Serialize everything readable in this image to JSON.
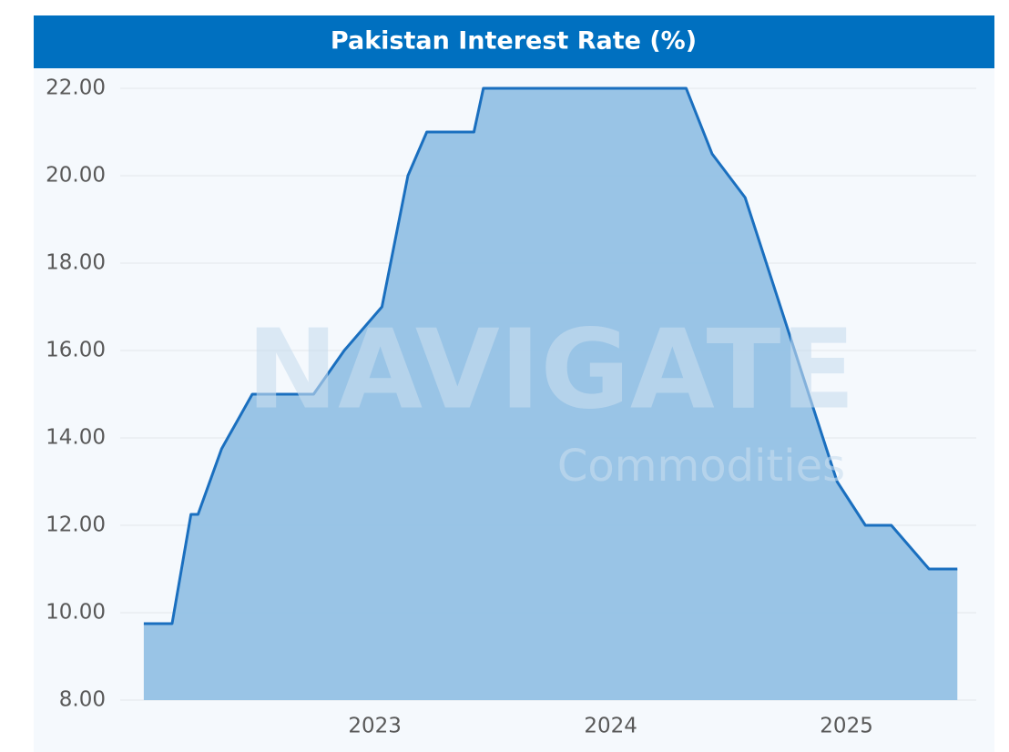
{
  "chart_data": {
    "type": "area",
    "title": "Pakistan Interest Rate (%)",
    "watermark": [
      "NAVIGATE",
      "Commodities"
    ],
    "x": [
      2022.02,
      2022.14,
      2022.22,
      2022.25,
      2022.35,
      2022.48,
      2022.74,
      2022.87,
      2023.03,
      2023.14,
      2023.22,
      2023.42,
      2023.46,
      2024.32,
      2024.43,
      2024.57,
      2024.96,
      2025.08,
      2025.19,
      2025.35,
      2025.47
    ],
    "series": [
      {
        "name": "Interest Rate",
        "color": "#1a6fbf",
        "fill": "#90bfe4",
        "values": [
          9.75,
          9.75,
          12.25,
          12.25,
          13.75,
          15,
          15,
          16,
          17,
          20,
          21,
          21,
          22,
          22,
          20.5,
          19.5,
          13,
          12,
          12,
          11,
          11
        ]
      }
    ],
    "xlim": [
      2021.92,
      2025.55
    ],
    "xticks": [
      2023,
      2024,
      2025
    ],
    "ylim": [
      8,
      22
    ],
    "yticks": [
      {
        "value": 8,
        "label": "8.00"
      },
      {
        "value": 10,
        "label": "10.00"
      },
      {
        "value": 12,
        "label": "12.00"
      },
      {
        "value": 14,
        "label": "14.00"
      },
      {
        "value": 16,
        "label": "16.00"
      },
      {
        "value": 18,
        "label": "18.00"
      },
      {
        "value": 20,
        "label": "20.00"
      },
      {
        "value": 22,
        "label": "22.00"
      }
    ],
    "grid": true
  }
}
